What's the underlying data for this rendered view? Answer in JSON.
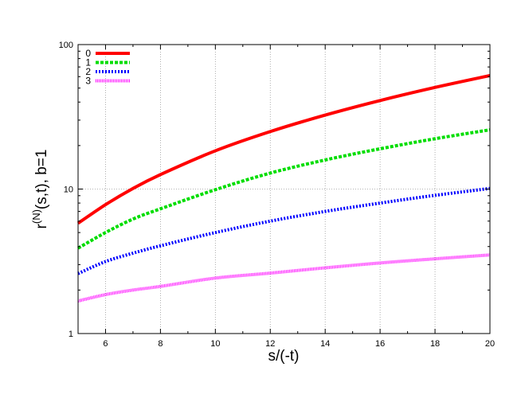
{
  "chart_data": {
    "type": "line",
    "title": "",
    "xlabel": "s/(-t)",
    "ylabel_main": "r",
    "ylabel_sup": "(N)",
    "ylabel_rest": "(s,t), b=1",
    "xlim": [
      5,
      20
    ],
    "ylim": [
      1,
      100
    ],
    "yscale": "log",
    "grid": true,
    "legend_position": "top-left",
    "x_ticks": [
      6,
      8,
      10,
      12,
      14,
      16,
      18,
      20
    ],
    "x_tick_labels": [
      "6",
      "8",
      "10",
      "12",
      "14",
      "16",
      "18",
      "20"
    ],
    "y_ticks": [
      1,
      10,
      100
    ],
    "y_tick_labels": [
      "1",
      "10",
      "100"
    ],
    "series": [
      {
        "name": "0",
        "color": "#ff0000",
        "dash": "solid",
        "x": [
          5,
          6,
          7,
          8,
          10,
          12,
          14,
          16,
          18,
          20
        ],
        "y": [
          5.8,
          7.8,
          10.1,
          12.6,
          18.4,
          25.0,
          32.5,
          41.0,
          50.5,
          61.0
        ]
      },
      {
        "name": "1",
        "color": "#00dd00",
        "dash": "dash",
        "x": [
          5,
          6,
          7,
          8,
          10,
          12,
          14,
          16,
          18,
          20
        ],
        "y": [
          3.9,
          5.0,
          6.2,
          7.3,
          9.9,
          12.9,
          15.9,
          19.0,
          22.3,
          25.7
        ]
      },
      {
        "name": "2",
        "color": "#0000ff",
        "dash": "dot",
        "x": [
          5,
          6,
          7,
          8,
          10,
          12,
          14,
          16,
          18,
          20
        ],
        "y": [
          2.6,
          3.15,
          3.6,
          4.05,
          5.0,
          6.0,
          7.0,
          8.0,
          9.05,
          10.1
        ]
      },
      {
        "name": "3",
        "color": "#ff00ff",
        "dash": "fine",
        "x": [
          5,
          6,
          7,
          8,
          10,
          12,
          14,
          16,
          18,
          20
        ],
        "y": [
          1.68,
          1.86,
          2.0,
          2.12,
          2.42,
          2.62,
          2.85,
          3.08,
          3.29,
          3.5
        ]
      }
    ]
  }
}
